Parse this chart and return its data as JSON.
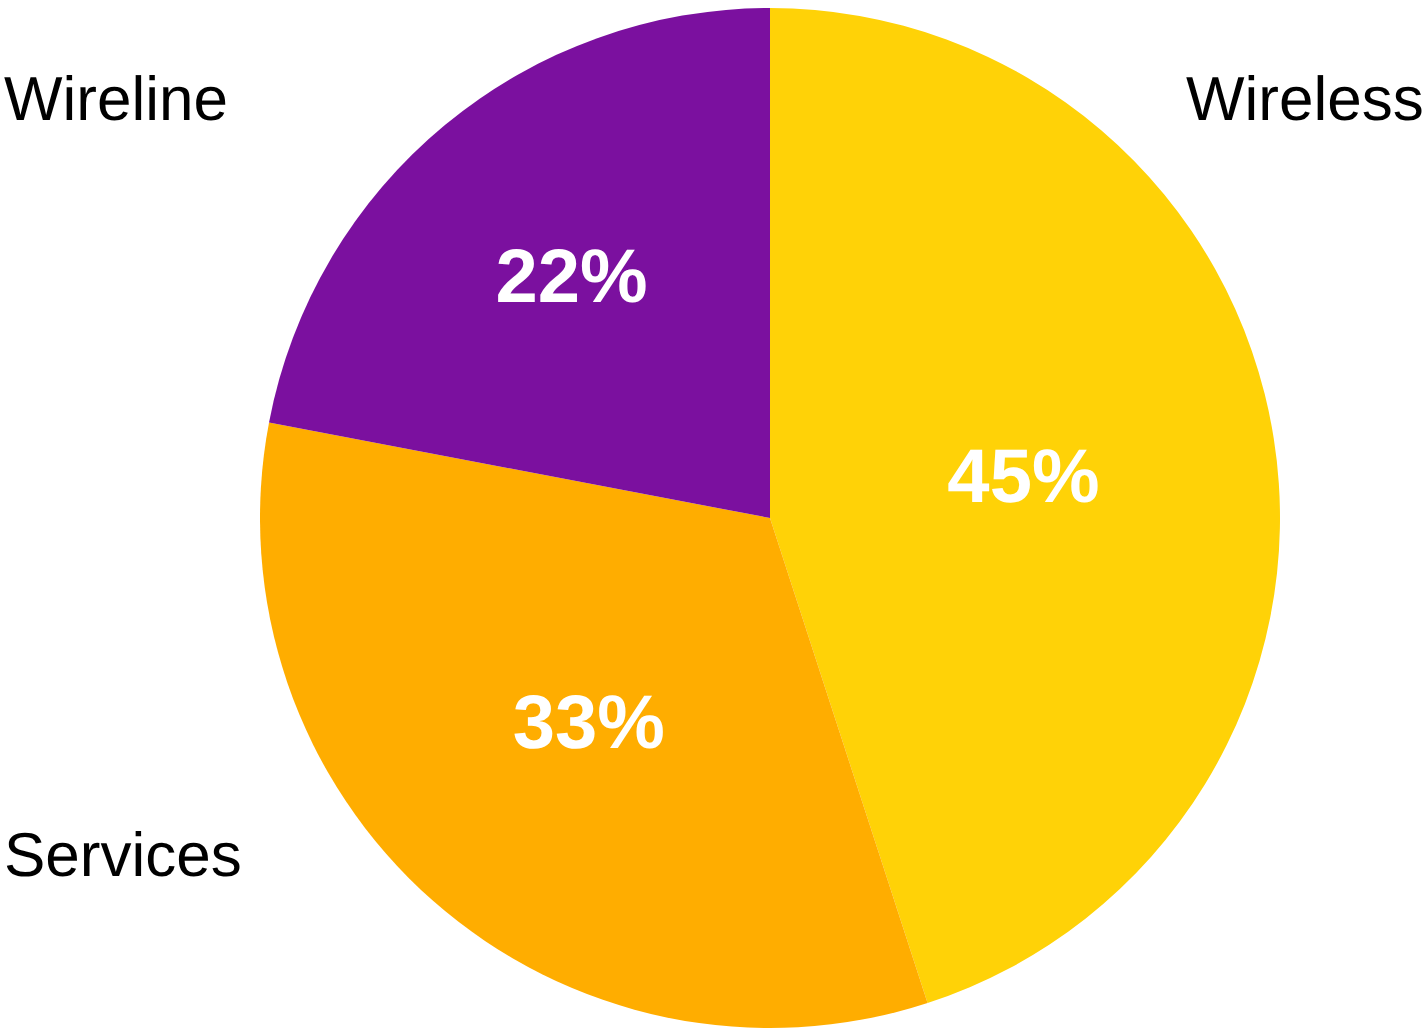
{
  "chart_data": {
    "type": "pie",
    "categories": [
      "Wireless",
      "Services",
      "Wireline"
    ],
    "values": [
      45,
      33,
      22
    ],
    "value_labels": [
      "45%",
      "33%",
      "22%"
    ],
    "colors": [
      "#ffd207",
      "#ffad00",
      "#7b109f"
    ],
    "legend": false
  }
}
